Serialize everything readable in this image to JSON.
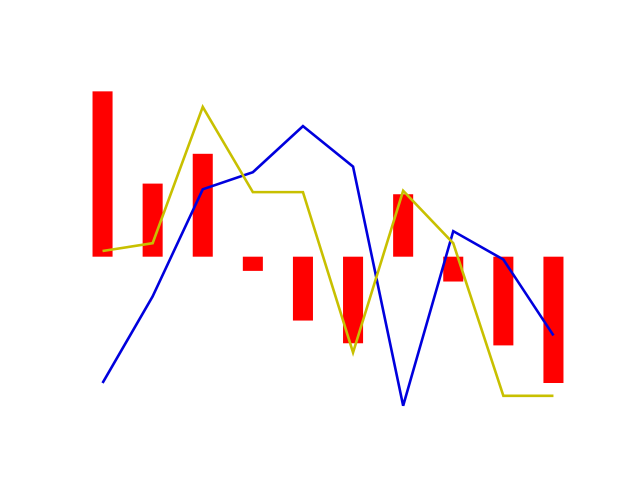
{
  "chart_data": {
    "type": "bar",
    "title": "",
    "xlabel": "",
    "ylabel": "",
    "axes_visible": false,
    "grid": false,
    "legend": "none",
    "x": [
      0,
      1,
      2,
      3,
      4,
      5,
      6,
      7,
      8,
      9
    ],
    "xlim": [
      -0.45,
      9.45
    ],
    "ylim": [
      -2.4,
      2.8
    ],
    "series": [
      {
        "kind": "bar",
        "color": "#ff0000",
        "values": [
          2.33,
          1.03,
          1.45,
          -0.2,
          -0.9,
          -1.22,
          0.88,
          -0.35,
          -1.25,
          -1.78
        ]
      },
      {
        "kind": "line",
        "color": "#0000dd",
        "values": [
          -1.78,
          -0.56,
          0.95,
          1.19,
          1.84,
          1.27,
          -2.1,
          0.36,
          -0.04,
          -1.11
        ]
      },
      {
        "kind": "line",
        "color": "#c8c000",
        "values": [
          0.08,
          0.19,
          2.11,
          0.91,
          0.91,
          -1.35,
          0.93,
          0.19,
          -1.96,
          -1.96
        ]
      }
    ]
  }
}
